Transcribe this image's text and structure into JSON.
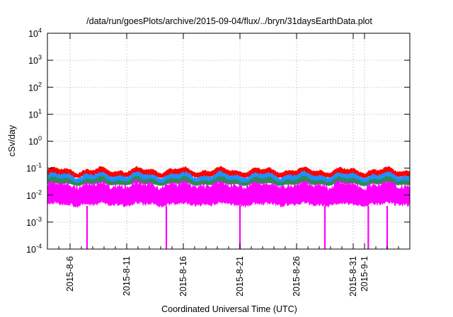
{
  "chart_data": {
    "type": "line",
    "title": "/data/run/goesPlots/archive/2015-09-04/flux/../bryn/31daysEarthData.plot",
    "xlabel": "Coordinated Universal Time (UTC)",
    "ylabel": "cSv/day",
    "y_scale": "log",
    "ylim": [
      0.0001,
      10000
    ],
    "y_ticks": [
      {
        "base": "10",
        "exp": "-4",
        "value": 0.0001
      },
      {
        "base": "10",
        "exp": "-3",
        "value": 0.001
      },
      {
        "base": "10",
        "exp": "-2",
        "value": 0.01
      },
      {
        "base": "10",
        "exp": "-1",
        "value": 0.1
      },
      {
        "base": "10",
        "exp": "0",
        "value": 1
      },
      {
        "base": "10",
        "exp": "1",
        "value": 10
      },
      {
        "base": "10",
        "exp": "2",
        "value": 100
      },
      {
        "base": "10",
        "exp": "3",
        "value": 1000
      },
      {
        "base": "10",
        "exp": "4",
        "value": 10000
      }
    ],
    "xlim": [
      "2015-08-04",
      "2015-09-05"
    ],
    "x_ticks": [
      {
        "label": "2015-8-6",
        "date": "2015-08-06"
      },
      {
        "label": "2015-8-11",
        "date": "2015-08-11"
      },
      {
        "label": "2015-8-16",
        "date": "2015-08-16"
      },
      {
        "label": "2015-8-21",
        "date": "2015-08-21"
      },
      {
        "label": "2015-8-26",
        "date": "2015-08-26"
      },
      {
        "label": "2015-8-31",
        "date": "2015-08-31"
      },
      {
        "label": "2015-9-1",
        "date": "2015-09-01"
      }
    ],
    "grid": true,
    "series": [
      {
        "color": "#ff0000",
        "typical_range": [
          0.05,
          0.09
        ]
      },
      {
        "color": "#1e90ff",
        "typical_range": [
          0.03,
          0.06
        ]
      },
      {
        "color": "#2e8b57",
        "typical_range": [
          0.025,
          0.04
        ]
      },
      {
        "color": "#ff00ff",
        "typical_range": [
          0.004,
          0.03
        ],
        "dips": [
          {
            "date": "2015-08-07T12:00",
            "value": 0.0001
          },
          {
            "date": "2015-08-14T12:00",
            "value": 0.0001
          },
          {
            "date": "2015-08-21T00:00",
            "value": 0.0001
          },
          {
            "date": "2015-08-28T12:00",
            "value": 0.0001
          },
          {
            "date": "2015-09-01T08:00",
            "value": 0.0001
          },
          {
            "date": "2015-09-03T00:00",
            "value": 0.0001
          }
        ]
      }
    ]
  }
}
